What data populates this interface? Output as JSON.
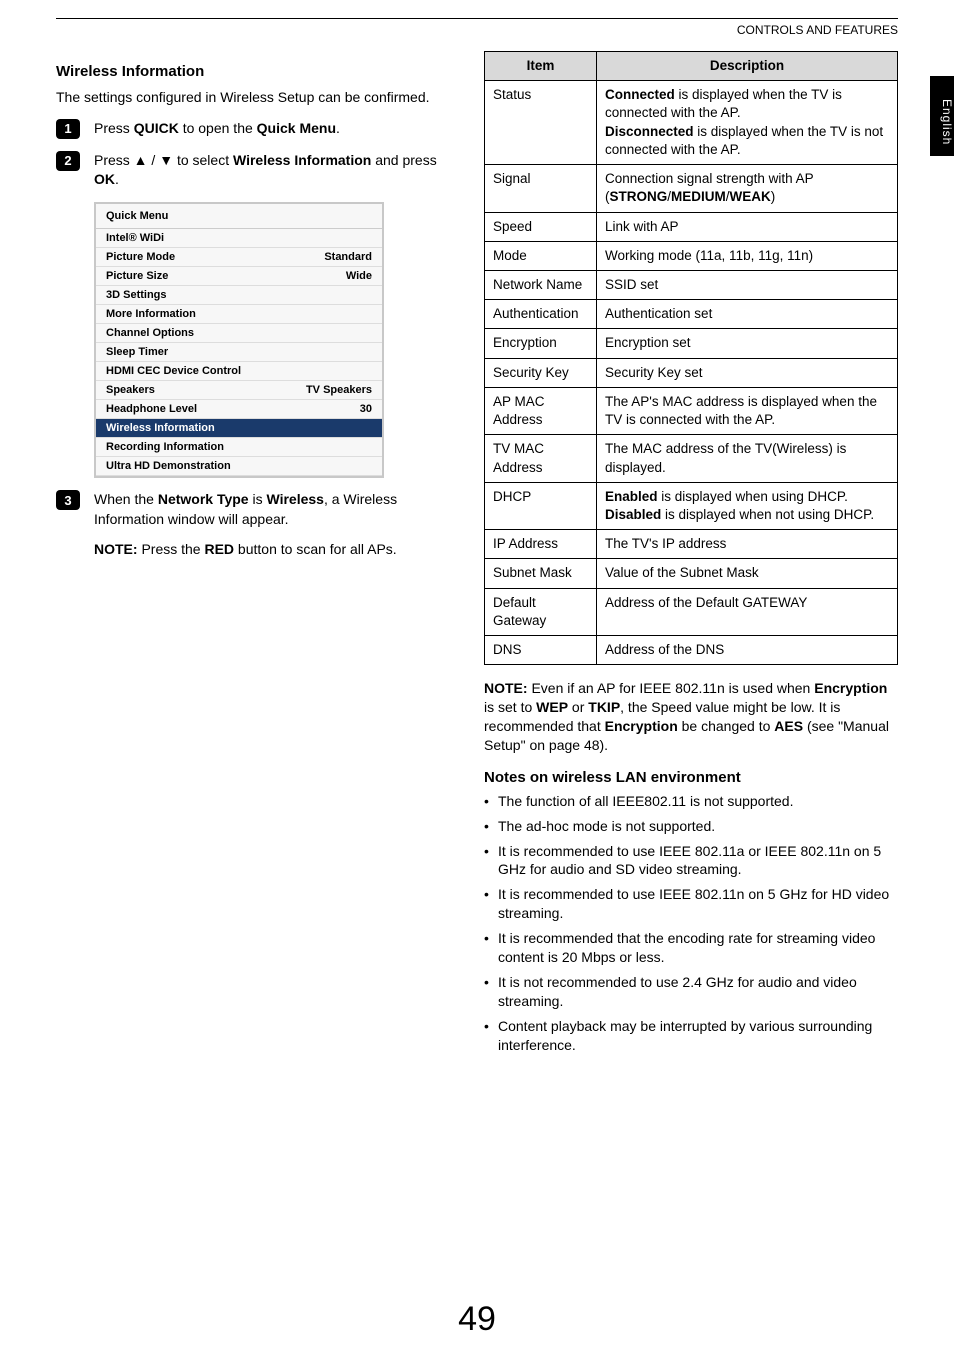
{
  "header": {
    "section": "CONTROLS AND FEATURES"
  },
  "sideTab": "English",
  "left": {
    "title": "Wireless Information",
    "intro": "The settings configured in Wireless Setup can be confirmed.",
    "steps": {
      "s1": {
        "pre": "Press ",
        "b1": "QUICK",
        "mid": " to open the ",
        "b2": "Quick Menu",
        "post": "."
      },
      "s2": {
        "pre": "Press ▲ / ▼ to select ",
        "b1": "Wireless Information",
        "post": " and press ",
        "b2": "OK",
        "post2": "."
      },
      "s3": {
        "pre": "When the ",
        "b1": "Network Type",
        "mid": " is ",
        "b2": "Wireless",
        "post": ", a Wireless Information window will appear."
      }
    },
    "quickMenu": {
      "title": "Quick Menu",
      "rows": [
        {
          "l": "Intel® WiDi",
          "r": ""
        },
        {
          "l": "Picture Mode",
          "r": "Standard"
        },
        {
          "l": "Picture Size",
          "r": "Wide"
        },
        {
          "l": "3D Settings",
          "r": ""
        },
        {
          "l": "More Information",
          "r": ""
        },
        {
          "l": "Channel Options",
          "r": ""
        },
        {
          "l": "Sleep Timer",
          "r": ""
        },
        {
          "l": "HDMI CEC Device Control",
          "r": ""
        },
        {
          "l": "Speakers",
          "r": "TV Speakers"
        },
        {
          "l": "Headphone Level",
          "r": "30"
        },
        {
          "l": "Wireless Information",
          "r": "",
          "hl": true
        },
        {
          "l": "Recording Information",
          "r": ""
        },
        {
          "l": "Ultra HD Demonstration",
          "r": ""
        }
      ]
    },
    "noteLine": {
      "b": "NOTE:",
      "t1": " Press the ",
      "b2": "RED",
      "t2": " button to scan for all APs."
    }
  },
  "right": {
    "headers": {
      "item": "Item",
      "desc": "Description"
    },
    "rows": [
      {
        "item": "Status",
        "html": "<b>Connected</b> is displayed when the TV is connected with the AP.<br><b>Disconnected</b> is displayed when the TV is not connected with the AP."
      },
      {
        "item": "Signal",
        "html": "Connection signal strength with AP (<b>STRONG</b>/<b>MEDIUM</b>/<b>WEAK</b>)"
      },
      {
        "item": "Speed",
        "html": "Link with AP"
      },
      {
        "item": "Mode",
        "html": "Working mode (11a, 11b, 11g, 11n)"
      },
      {
        "item": "Network Name",
        "html": "SSID set"
      },
      {
        "item": "Authentication",
        "html": "Authentication set"
      },
      {
        "item": "Encryption",
        "html": "Encryption set"
      },
      {
        "item": "Security Key",
        "html": "Security Key set"
      },
      {
        "item": "AP MAC Address",
        "html": "The AP's MAC address is displayed when the TV is connected with the AP."
      },
      {
        "item": "TV MAC Address",
        "html": "The MAC address of the TV(Wireless) is displayed."
      },
      {
        "item": "DHCP",
        "html": "<b>Enabled</b> is displayed when using DHCP.<br><b>Disabled</b> is displayed when not using DHCP."
      },
      {
        "item": "IP Address",
        "html": "The TV's IP address"
      },
      {
        "item": "Subnet Mask",
        "html": "Value of the Subnet Mask"
      },
      {
        "item": "Default Gateway",
        "html": "Address of the Default GATEWAY"
      },
      {
        "item": "DNS",
        "html": "Address of the DNS"
      }
    ],
    "notePara": "<b>NOTE:</b> Even if an AP for IEEE 802.11n is used when <b>Encryption</b> is set to <b>WEP</b> or <b>TKIP</b>, the Speed value might be low. It is recommended that <b>Encryption</b> be changed to <b>AES</b> (see \"Manual Setup\" on page 48).",
    "notesTitle": "Notes on wireless LAN environment",
    "bullets": [
      "The function of all IEEE802.11 is not supported.",
      "The ad-hoc mode is not supported.",
      "It is recommended to use IEEE 802.11a or IEEE 802.11n on 5 GHz for audio and SD video streaming.",
      "It is recommended to use IEEE 802.11n on 5 GHz for HD video streaming.",
      "It is recommended that the encoding rate for streaming video content is 20 Mbps or less.",
      "It is not recommended to use 2.4 GHz for audio and video streaming.",
      "Content playback may be interrupted by various surrounding interference."
    ]
  },
  "pageNum": "49"
}
